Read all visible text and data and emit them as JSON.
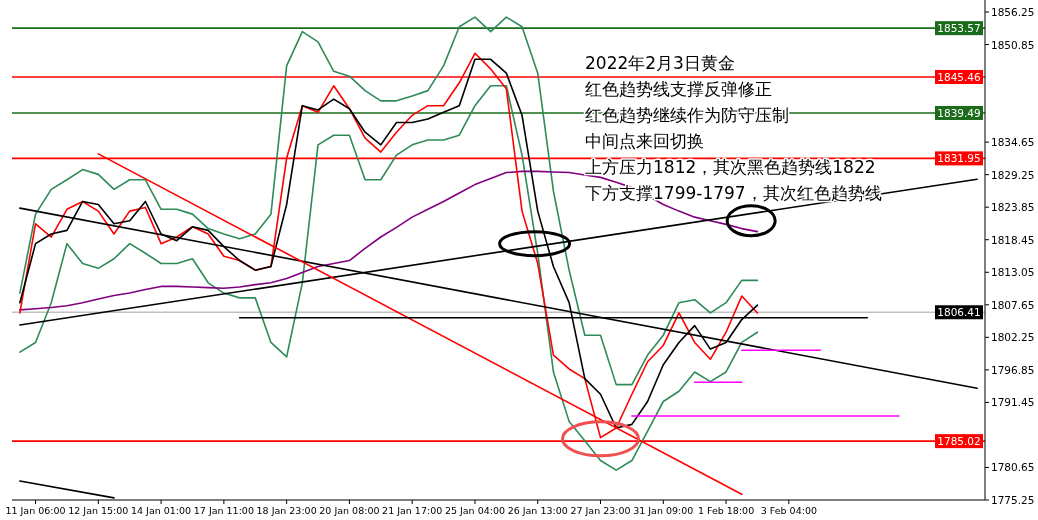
{
  "chart_data": {
    "type": "line",
    "annotations": [
      "2022年2月3日黄金",
      "红色趋势线支撑反弹修正",
      "红色趋势继续作为防守压制",
      "中间点来回切换",
      "上方压力1812，其次黑色趋势线1822",
      "下方支撑1799-1797，其次红色趋势线"
    ],
    "categories": [
      null,
      "11 Jan 06:00",
      null,
      null,
      null,
      "12 Jan 15:00",
      null,
      null,
      null,
      "14 Jan 01:00",
      null,
      null,
      null,
      "17 Jan 11:00",
      null,
      null,
      null,
      "18 Jan 23:00",
      null,
      null,
      null,
      "20 Jan 08:00",
      null,
      null,
      null,
      "21 Jan 17:00",
      null,
      null,
      null,
      "25 Jan 04:00",
      null,
      null,
      null,
      "26 Jan 13:00",
      null,
      null,
      null,
      "27 Jan 23:00",
      null,
      null,
      null,
      "31 Jan 09:00",
      null,
      null,
      null,
      "1 Feb 18:00",
      null,
      null,
      null,
      "3 Feb 04:00",
      null,
      null,
      null,
      null,
      null,
      null,
      null,
      null,
      null,
      null,
      null,
      null
    ],
    "ylim": [
      1775.25,
      1856.25
    ],
    "yticks": [
      1856.25,
      1850.85,
      1834.65,
      1829.25,
      1823.85,
      1818.45,
      1813.05,
      1807.65,
      1802.25,
      1796.85,
      1791.45,
      1780.65,
      1775.25
    ],
    "grid": false,
    "marker": "none",
    "line_style": "solid",
    "ref_lines": [
      {
        "axis": "y",
        "value": 1853.57,
        "label": "1853.57",
        "color": "#1a6b1a"
      },
      {
        "axis": "y",
        "value": 1845.46,
        "label": "1845.46",
        "color": "#ff0000"
      },
      {
        "axis": "y",
        "value": 1839.49,
        "label": "1839.49",
        "color": "#1a6b1a"
      },
      {
        "axis": "y",
        "value": 1831.95,
        "label": "1831.95",
        "color": "#ff0000"
      },
      {
        "axis": "y",
        "value": 1806.41,
        "label": "1806.41",
        "color": "#c0c0c0"
      },
      {
        "axis": "y",
        "value": 1785.02,
        "label": "1785.02",
        "color": "#ff0000"
      }
    ],
    "series": [
      {
        "color": "#2e8b57",
        "values": [
          1809.6,
          1822.7,
          1826.8,
          1828.4,
          1830.1,
          1829.3,
          1826.8,
          1828.4,
          1828.4,
          1823.5,
          1823.5,
          1822.7,
          1820.3,
          1819.4,
          1818.6,
          1819.4,
          1822.7,
          1847.3,
          1853.0,
          1851.3,
          1846.4,
          1845.6,
          1843.2,
          1841.5,
          1841.5,
          1842.3,
          1843.2,
          1847.3,
          1853.8,
          1855.4,
          1853.0,
          1855.4,
          1853.8,
          1846.1,
          1826.5,
          1813.4,
          1802.6,
          1802.6,
          1794.4,
          1794.4,
          1799.3,
          1802.6,
          1808.0,
          1808.5,
          1806.3,
          1808.0,
          1811.7,
          1811.7,
          null,
          null,
          null,
          null,
          null,
          null,
          null,
          null,
          null,
          null,
          null,
          null,
          null,
          null
        ]
      },
      {
        "color": "#2e8b57",
        "values": [
          1799.8,
          1801.4,
          1808.0,
          1817.8,
          1814.5,
          1813.7,
          1815.3,
          1817.8,
          1816.2,
          1814.5,
          1814.5,
          1815.3,
          1811.3,
          1809.6,
          1808.8,
          1808.8,
          1801.4,
          1799.0,
          1811.3,
          1834.2,
          1835.8,
          1835.8,
          1828.4,
          1828.4,
          1832.5,
          1834.2,
          1835.0,
          1835.0,
          1835.8,
          1840.7,
          1844.0,
          1844.0,
          1832.5,
          1816.2,
          1796.5,
          1788.3,
          1785.1,
          1781.8,
          1780.2,
          1781.8,
          1786.7,
          1791.6,
          1793.3,
          1796.5,
          1794.9,
          1796.5,
          1801.4,
          1803.1,
          null,
          null,
          null,
          null,
          null,
          null,
          null,
          null,
          null,
          null,
          null,
          null,
          null,
          null
        ]
      },
      {
        "color": "#800080",
        "values": [
          1806.8,
          1807.0,
          1807.2,
          1807.5,
          1808.0,
          1808.6,
          1809.2,
          1809.6,
          1810.2,
          1810.7,
          1810.7,
          1810.6,
          1810.5,
          1810.4,
          1810.6,
          1811.0,
          1811.3,
          1812.0,
          1813.0,
          1814.0,
          1814.5,
          1815.0,
          1817.0,
          1818.9,
          1820.5,
          1822.2,
          1823.5,
          1824.8,
          1826.2,
          1827.6,
          1828.6,
          1829.6,
          1829.8,
          1829.8,
          1829.7,
          1829.6,
          1829.2,
          1828.8,
          1828.0,
          1827.1,
          1825.8,
          1824.3,
          1823.2,
          1822.2,
          1821.6,
          1821.0,
          1820.3,
          1819.8,
          null,
          null,
          null,
          null,
          null,
          null,
          null,
          null,
          null,
          null,
          null,
          null,
          null,
          null
        ]
      },
      {
        "color": "#ff0000",
        "values": [
          1806.3,
          1821.1,
          1818.9,
          1823.5,
          1824.8,
          1823.2,
          1819.4,
          1823.2,
          1823.8,
          1817.8,
          1818.9,
          1820.6,
          1819.4,
          1815.7,
          1815.0,
          1813.4,
          1814.0,
          1832.0,
          1840.7,
          1839.6,
          1844.0,
          1840.2,
          1835.3,
          1833.0,
          1836.3,
          1839.1,
          1840.7,
          1840.7,
          1844.5,
          1849.4,
          1846.8,
          1843.5,
          1823.2,
          1814.5,
          1799.3,
          1797.0,
          1795.4,
          1785.6,
          1787.2,
          1792.8,
          1798.2,
          1800.9,
          1806.3,
          1801.4,
          1798.6,
          1803.1,
          1809.1,
          1806.3,
          null,
          null,
          null,
          null,
          null,
          null,
          null,
          null,
          null,
          null,
          null,
          null,
          null,
          null
        ]
      },
      {
        "color": "#000000",
        "values": [
          1808.0,
          1817.8,
          1819.4,
          1820.0,
          1824.8,
          1824.3,
          1821.1,
          1821.6,
          1824.8,
          1819.4,
          1818.3,
          1820.6,
          1820.0,
          1817.3,
          1815.0,
          1813.4,
          1814.0,
          1824.3,
          1840.7,
          1840.0,
          1841.8,
          1840.2,
          1836.3,
          1834.2,
          1837.9,
          1837.9,
          1838.5,
          1839.6,
          1840.7,
          1848.4,
          1848.4,
          1846.1,
          1839.1,
          1823.2,
          1814.0,
          1808.0,
          1795.4,
          1792.8,
          1787.2,
          1787.8,
          1791.6,
          1797.7,
          1801.4,
          1804.2,
          1800.3,
          1801.4,
          1805.2,
          1807.6,
          null,
          null,
          null,
          null,
          null,
          null,
          null,
          null,
          null,
          null,
          null,
          null,
          null,
          null
        ]
      },
      {
        "color": "#000000",
        "values": [
          1823.7,
          null,
          null,
          null,
          null,
          null,
          null,
          null,
          null,
          null,
          null,
          null,
          null,
          null,
          null,
          null,
          null,
          null,
          null,
          null,
          null,
          null,
          null,
          null,
          null,
          null,
          null,
          null,
          null,
          null,
          null,
          null,
          null,
          null,
          null,
          null,
          null,
          null,
          null,
          null,
          null,
          null,
          null,
          null,
          null,
          null,
          null,
          null,
          null,
          null,
          null,
          null,
          null,
          null,
          null,
          null,
          null,
          null,
          null,
          null,
          null,
          1793.8
        ]
      },
      {
        "color": "#000000",
        "values": [
          1804.3,
          null,
          null,
          null,
          null,
          null,
          null,
          null,
          null,
          null,
          null,
          null,
          null,
          null,
          null,
          null,
          null,
          null,
          null,
          null,
          null,
          null,
          null,
          null,
          null,
          null,
          null,
          null,
          null,
          null,
          null,
          null,
          null,
          null,
          null,
          null,
          null,
          null,
          null,
          null,
          null,
          null,
          null,
          null,
          null,
          null,
          null,
          null,
          null,
          null,
          null,
          null,
          null,
          null,
          null,
          null,
          null,
          null,
          null,
          null,
          null,
          1828.5
        ]
      },
      {
        "color": "#ff0000",
        "values": [
          null,
          null,
          null,
          null,
          null,
          1832.7,
          null,
          null,
          null,
          null,
          null,
          null,
          null,
          null,
          null,
          null,
          null,
          null,
          null,
          null,
          null,
          null,
          null,
          null,
          null,
          null,
          null,
          null,
          null,
          null,
          null,
          null,
          null,
          null,
          null,
          null,
          null,
          null,
          null,
          null,
          null,
          null,
          null,
          null,
          null,
          null,
          1776.2,
          null,
          null,
          null,
          null,
          null,
          null,
          null,
          null,
          null,
          null,
          null,
          null,
          null,
          null,
          null
        ]
      },
      {
        "color": "#000000",
        "values": [
          null,
          null,
          null,
          null,
          null,
          null,
          null,
          null,
          null,
          null,
          null,
          null,
          null,
          null,
          1805.5,
          null,
          null,
          null,
          null,
          null,
          null,
          null,
          null,
          null,
          null,
          null,
          null,
          null,
          null,
          null,
          null,
          null,
          null,
          null,
          null,
          null,
          null,
          null,
          null,
          null,
          null,
          null,
          null,
          null,
          null,
          null,
          null,
          null,
          null,
          null,
          null,
          null,
          null,
          null,
          1805.5,
          null,
          null,
          null,
          null,
          null,
          null,
          null
        ]
      },
      {
        "color": "#000000",
        "values": [
          1778.4,
          null,
          null,
          null,
          null,
          null,
          1775.6,
          null,
          null,
          null,
          null,
          null,
          null,
          null,
          null,
          null,
          null,
          null,
          null,
          null,
          null,
          null,
          null,
          null,
          null,
          null,
          null,
          null,
          null,
          null,
          null,
          null,
          null,
          null,
          null,
          null,
          null,
          null,
          null,
          null,
          null,
          null,
          null,
          null,
          null,
          null,
          null,
          null,
          null,
          null,
          null,
          null,
          null,
          null,
          null,
          null,
          null,
          null,
          null,
          null,
          null,
          null
        ]
      },
      {
        "color": "#ff00ff",
        "values": [
          null,
          null,
          null,
          null,
          null,
          null,
          null,
          null,
          null,
          null,
          null,
          null,
          null,
          null,
          null,
          null,
          null,
          null,
          null,
          null,
          null,
          null,
          null,
          null,
          null,
          null,
          null,
          null,
          null,
          null,
          null,
          null,
          null,
          null,
          null,
          null,
          null,
          null,
          null,
          1789.2,
          null,
          null,
          null,
          null,
          null,
          null,
          null,
          null,
          null,
          null,
          null,
          null,
          null,
          null,
          null,
          null,
          1789.2,
          null,
          null,
          null,
          null,
          null
        ]
      },
      {
        "color": "#ff00ff",
        "values": [
          null,
          null,
          null,
          null,
          null,
          null,
          null,
          null,
          null,
          null,
          null,
          null,
          null,
          null,
          null,
          null,
          null,
          null,
          null,
          null,
          null,
          null,
          null,
          null,
          null,
          null,
          null,
          null,
          null,
          null,
          null,
          null,
          null,
          null,
          null,
          null,
          null,
          null,
          null,
          null,
          null,
          null,
          null,
          1794.8,
          null,
          null,
          1794.8,
          null,
          null,
          null,
          null,
          null,
          null,
          null,
          null,
          null,
          null,
          null,
          null,
          null,
          null,
          null
        ]
      },
      {
        "color": "#ff00ff",
        "values": [
          null,
          null,
          null,
          null,
          null,
          null,
          null,
          null,
          null,
          null,
          null,
          null,
          null,
          null,
          null,
          null,
          null,
          null,
          null,
          null,
          null,
          null,
          null,
          null,
          null,
          null,
          null,
          null,
          null,
          null,
          null,
          null,
          null,
          null,
          null,
          null,
          null,
          null,
          null,
          null,
          null,
          null,
          null,
          null,
          null,
          null,
          1800.1,
          null,
          null,
          null,
          null,
          1800.1,
          null,
          null,
          null,
          null,
          null,
          null,
          null,
          null,
          null,
          null
        ]
      }
    ]
  }
}
